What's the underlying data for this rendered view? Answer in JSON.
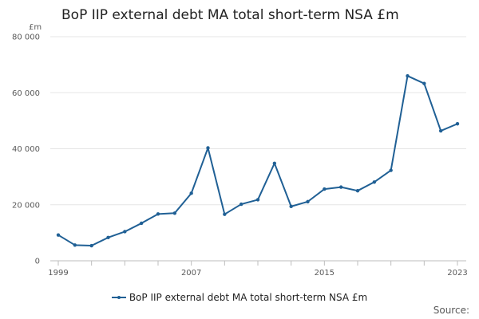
{
  "chart_data": {
    "type": "line",
    "title": "BoP IIP external debt MA total short-term NSA £m",
    "ylabel": "£m",
    "xlabel": "",
    "x": [
      1999,
      2000,
      2001,
      2002,
      2003,
      2004,
      2005,
      2006,
      2007,
      2008,
      2009,
      2010,
      2011,
      2012,
      2013,
      2014,
      2015,
      2016,
      2017,
      2018,
      2019,
      2020,
      2021,
      2022,
      2023
    ],
    "series": [
      {
        "name": "BoP IIP external debt MA total short-term NSA £m",
        "color": "#206095",
        "values": [
          9200,
          5600,
          5400,
          8300,
          10400,
          13400,
          16700,
          17000,
          24100,
          40300,
          16600,
          20200,
          21800,
          34800,
          19400,
          21100,
          25600,
          26300,
          25000,
          28100,
          32300,
          66000,
          63300,
          46400,
          48900
        ]
      }
    ],
    "ylim": [
      0,
      80000
    ],
    "yticks": [
      0,
      20000,
      40000,
      60000,
      80000
    ],
    "ytick_labels": [
      "0",
      "20 000",
      "40 000",
      "60 000",
      "80 000"
    ],
    "xticks": [
      1999,
      2007,
      2015,
      2023
    ],
    "xtick_labels": [
      "1999",
      "2007",
      "2015",
      "2023"
    ],
    "grid": true,
    "legend_position": "bottom",
    "source_label": "Source:"
  }
}
